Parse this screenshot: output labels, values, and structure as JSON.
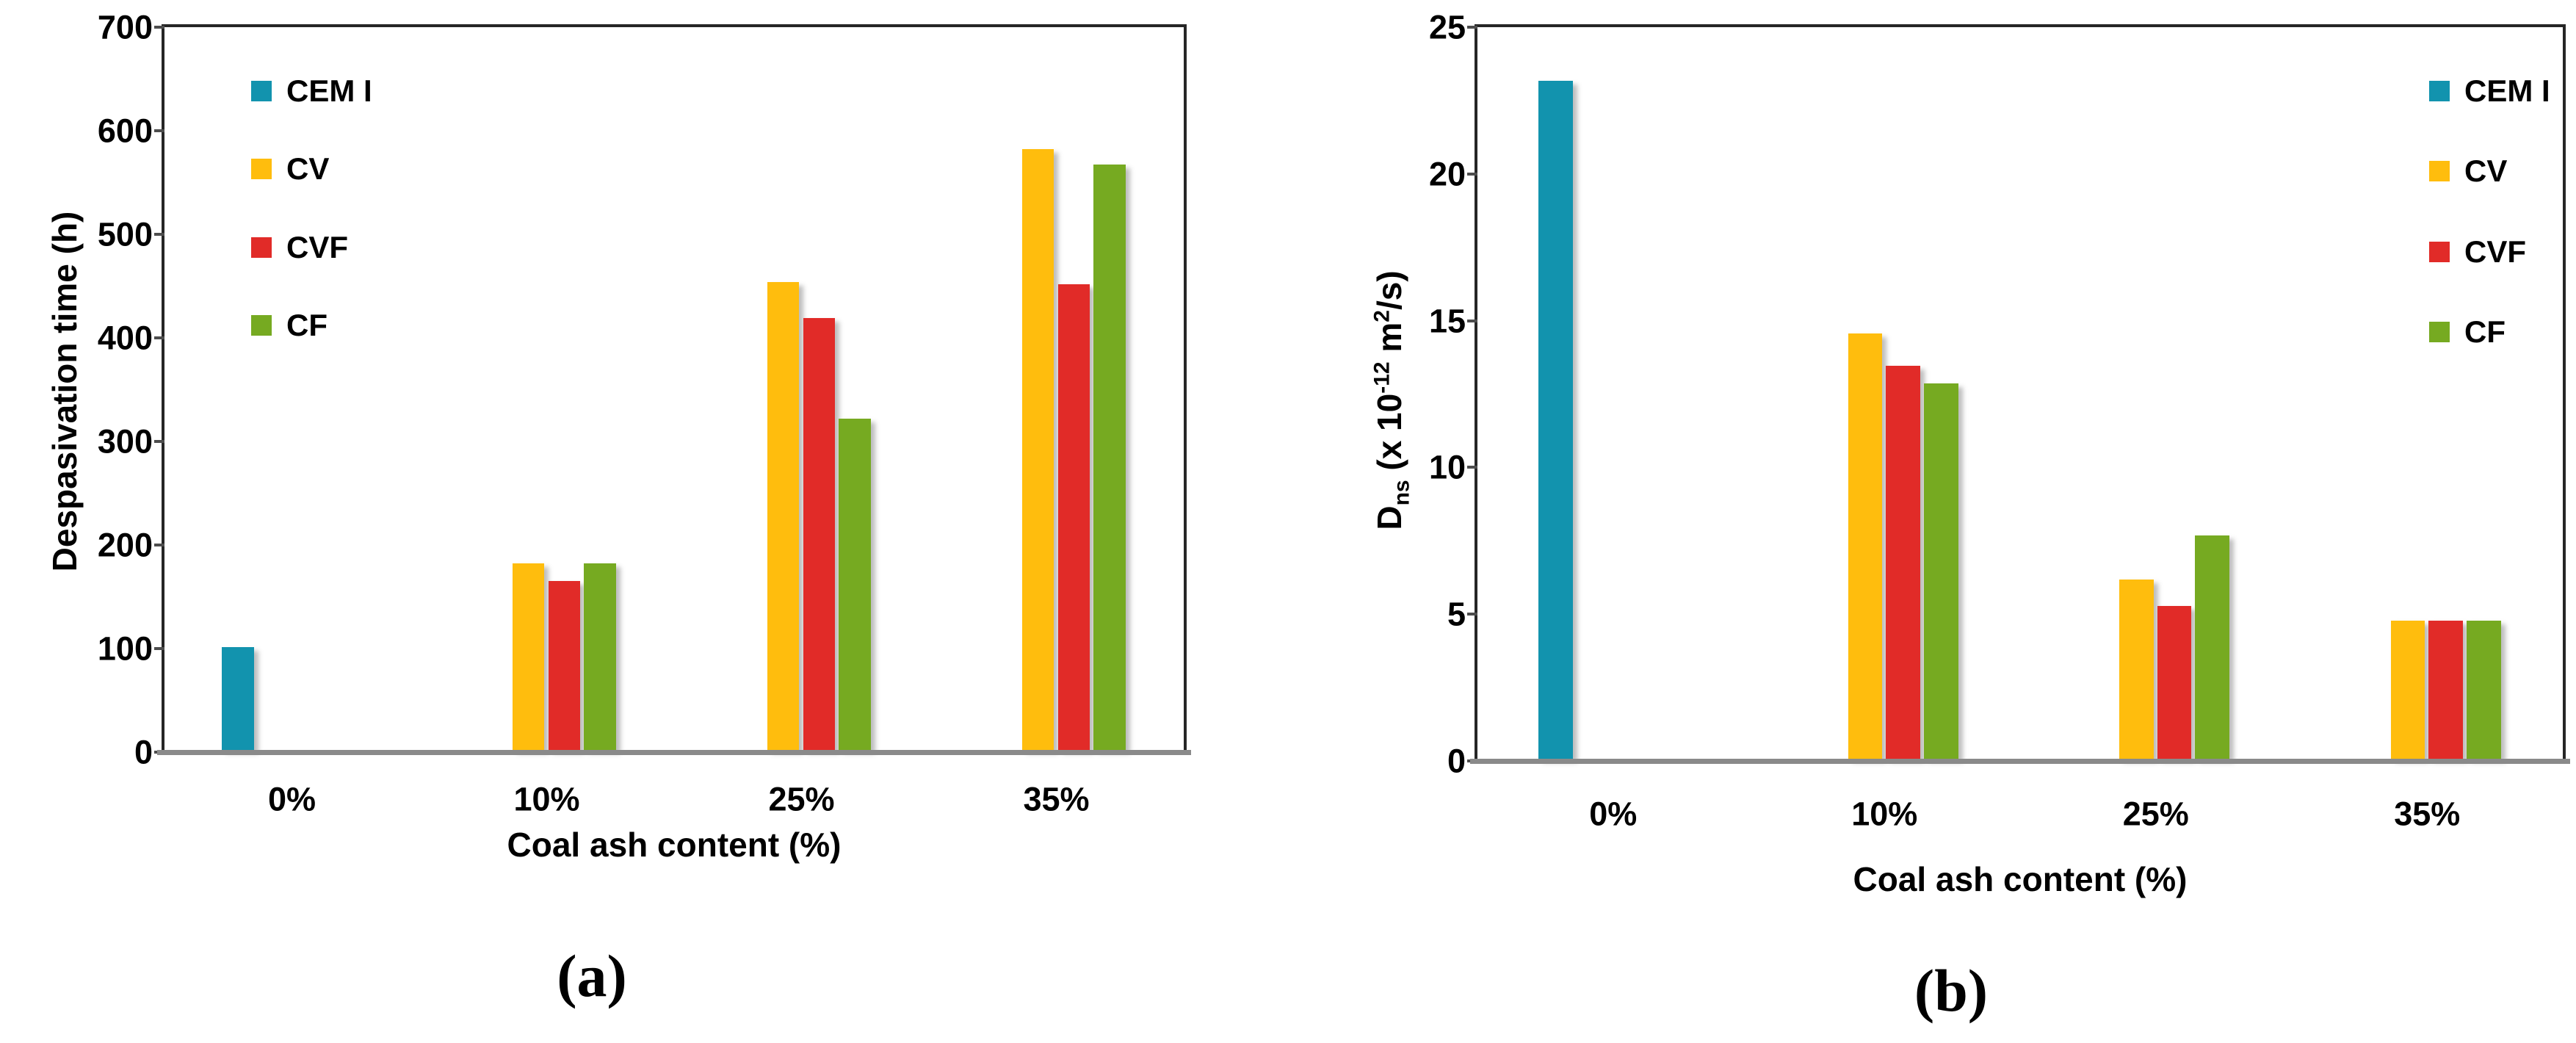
{
  "figure": {
    "background": "#ffffff",
    "frame_color": "#262626",
    "baseline_color": "#8a8a8a"
  },
  "palette": {
    "cem_i": "#1293AE",
    "cv": "#FFBD0D",
    "cvf": "#E12B28",
    "cf": "#76AA21"
  },
  "chart_data": [
    {
      "id": "a",
      "type": "bar",
      "caption": "(a)",
      "xlabel": "Coal ash content (%)",
      "ylabel": "Despasivation time (h)",
      "categories": [
        "0%",
        "10%",
        "25%",
        "35%"
      ],
      "series": [
        {
          "name": "CEM I",
          "color": "#1293AE",
          "values": [
            99,
            null,
            null,
            null
          ]
        },
        {
          "name": "CV",
          "color": "#FFBD0D",
          "values": [
            null,
            180,
            452,
            580
          ]
        },
        {
          "name": "CVF",
          "color": "#E12B28",
          "values": [
            null,
            163,
            417,
            450
          ]
        },
        {
          "name": "CF",
          "color": "#76AA21",
          "values": [
            null,
            180,
            320,
            565
          ]
        }
      ],
      "ylim": [
        0,
        700
      ],
      "yticks": [
        0,
        100,
        200,
        300,
        400,
        500,
        600,
        700
      ],
      "grid": false,
      "legend_position": "top-left"
    },
    {
      "id": "b",
      "type": "bar",
      "caption": "(b)",
      "xlabel": "Coal ash content (%)",
      "ylabel": "Dns (x 10-12 m2/s)",
      "ylabel_parts": {
        "base": "D",
        "sub": "ns",
        "mid": " (x 10",
        "sup": "-12",
        "mid2": " m",
        "sup2": "2",
        "end": "/s)"
      },
      "categories": [
        "0%",
        "10%",
        "25%",
        "35%"
      ],
      "series": [
        {
          "name": "CEM I",
          "color": "#1293AE",
          "values": [
            23.1,
            null,
            null,
            null
          ]
        },
        {
          "name": "CV",
          "color": "#FFBD0D",
          "values": [
            null,
            14.5,
            6.1,
            4.7
          ]
        },
        {
          "name": "CVF",
          "color": "#E12B28",
          "values": [
            null,
            13.4,
            5.2,
            4.7
          ]
        },
        {
          "name": "CF",
          "color": "#76AA21",
          "values": [
            null,
            12.8,
            7.6,
            4.7
          ]
        }
      ],
      "ylim": [
        0,
        25
      ],
      "yticks": [
        0,
        5,
        10,
        15,
        20,
        25
      ],
      "grid": false,
      "legend_position": "top-right"
    }
  ]
}
